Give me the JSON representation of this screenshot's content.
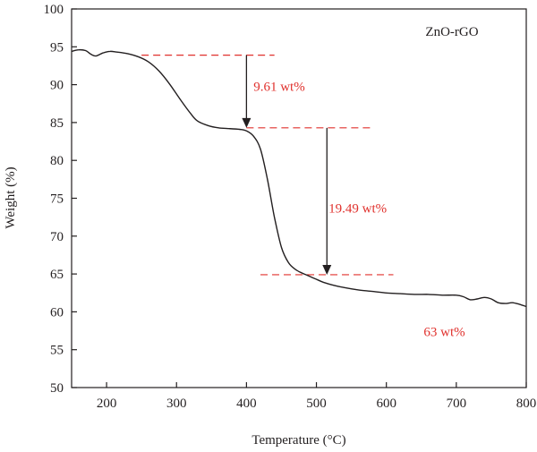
{
  "chart_data": {
    "type": "line",
    "xlabel": "Temperature (°C)",
    "ylabel": "Weight (%)",
    "xlim": [
      150,
      800
    ],
    "ylim": [
      50,
      100
    ],
    "x_ticks": [
      "200",
      "300",
      "400",
      "500",
      "600",
      "700",
      "800"
    ],
    "y_ticks": [
      "50",
      "55",
      "60",
      "65",
      "70",
      "75",
      "80",
      "85",
      "90",
      "95",
      "100"
    ],
    "grid": false,
    "legend_position": "top-right",
    "colors": {
      "curve": "#231f20",
      "annotation": "#e0312d",
      "axis": "#231f20"
    },
    "series": [
      {
        "name": "ZnO-rGO",
        "x": [
          150,
          160,
          170,
          178,
          185,
          195,
          205,
          215,
          230,
          245,
          260,
          275,
          290,
          305,
          320,
          330,
          345,
          360,
          375,
          390,
          400,
          410,
          420,
          430,
          440,
          450,
          460,
          470,
          480,
          490,
          500,
          510,
          525,
          540,
          560,
          580,
          600,
          620,
          640,
          660,
          680,
          700,
          710,
          720,
          730,
          740,
          750,
          760,
          770,
          780,
          790,
          800
        ],
        "y": [
          94.4,
          94.6,
          94.5,
          94.0,
          93.8,
          94.2,
          94.4,
          94.3,
          94.1,
          93.7,
          93.0,
          91.8,
          90.1,
          88.1,
          86.2,
          85.2,
          84.6,
          84.3,
          84.2,
          84.1,
          83.9,
          83.2,
          81.5,
          77.5,
          72.5,
          68.5,
          66.5,
          65.6,
          65.1,
          64.7,
          64.3,
          63.9,
          63.5,
          63.2,
          62.9,
          62.7,
          62.5,
          62.4,
          62.3,
          62.3,
          62.2,
          62.2,
          62.0,
          61.6,
          61.7,
          61.9,
          61.7,
          61.2,
          61.1,
          61.2,
          61.0,
          60.7
        ]
      }
    ],
    "reference_lines": [
      {
        "y": 93.9,
        "x_start": 250,
        "x_end": 440
      },
      {
        "y": 84.3,
        "x_start": 400,
        "x_end": 580
      },
      {
        "y": 64.9,
        "x_start": 420,
        "x_end": 610
      }
    ],
    "arrows": [
      {
        "x": 400,
        "y_from": 93.9,
        "y_to": 84.3
      },
      {
        "x": 515,
        "y_from": 84.3,
        "y_to": 64.9
      }
    ],
    "annotations": [
      {
        "text": "9.61 wt%",
        "x": 410,
        "y": 89.8
      },
      {
        "text": "19.49 wt%",
        "x": 559,
        "y": 73.7
      },
      {
        "text": "63 wt%",
        "x": 683,
        "y": 57.4
      }
    ]
  }
}
